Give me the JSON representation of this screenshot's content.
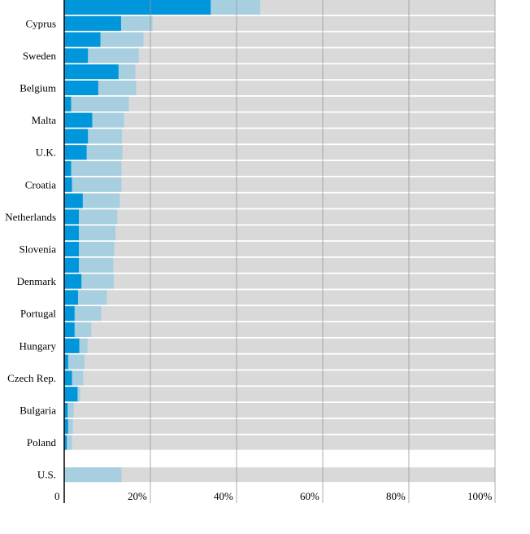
{
  "chart_data": {
    "type": "bar",
    "orientation": "horizontal",
    "stacked": true,
    "colors": {
      "dark": "#0096db",
      "light": "#a7cfe0",
      "remainder": "#d9d9d9",
      "gridline": "#999999",
      "axis": "#000000"
    },
    "xlim": [
      0,
      100
    ],
    "x_ticks": [
      {
        "value": 0,
        "label": "0"
      },
      {
        "value": 20,
        "label": "20%"
      },
      {
        "value": 40,
        "label": "40%"
      },
      {
        "value": 60,
        "label": "60%"
      },
      {
        "value": 80,
        "label": "80%"
      },
      {
        "value": 100,
        "label": "100%"
      }
    ],
    "rows": [
      {
        "label": "",
        "dark": 34,
        "light": 11.5
      },
      {
        "label": "Cyprus",
        "dark": 13.2,
        "light": 7.3
      },
      {
        "label": "",
        "dark": 8.4,
        "light": 10
      },
      {
        "label": "Sweden",
        "dark": 5.5,
        "light": 11.8
      },
      {
        "label": "",
        "dark": 12.6,
        "light": 3.9
      },
      {
        "label": "Belgium",
        "dark": 7.9,
        "light": 8.8
      },
      {
        "label": "",
        "dark": 1.6,
        "light": 13.4
      },
      {
        "label": "Malta",
        "dark": 6.5,
        "light": 7.4
      },
      {
        "label": "",
        "dark": 5.5,
        "light": 7.9
      },
      {
        "label": "U.K.",
        "dark": 5.2,
        "light": 8.3
      },
      {
        "label": "",
        "dark": 1.6,
        "light": 11.7
      },
      {
        "label": "Croatia",
        "dark": 1.8,
        "light": 11.5
      },
      {
        "label": "",
        "dark": 4.3,
        "light": 8.6
      },
      {
        "label": "Netherlands",
        "dark": 3.4,
        "light": 8.9
      },
      {
        "label": "",
        "dark": 3.4,
        "light": 8.5
      },
      {
        "label": "Slovenia",
        "dark": 3.4,
        "light": 8.2
      },
      {
        "label": "",
        "dark": 3.4,
        "light": 8
      },
      {
        "label": "Denmark",
        "dark": 4,
        "light": 7.5
      },
      {
        "label": "",
        "dark": 3.2,
        "light": 6.7
      },
      {
        "label": "Portugal",
        "dark": 2.4,
        "light": 6.2
      },
      {
        "label": "",
        "dark": 2.4,
        "light": 3.9
      },
      {
        "label": "Hungary",
        "dark": 3.5,
        "light": 1.9
      },
      {
        "label": "",
        "dark": 0.9,
        "light": 3.8
      },
      {
        "label": "Czech Rep.",
        "dark": 1.8,
        "light": 2.6
      },
      {
        "label": "",
        "dark": 3.1,
        "light": 0.6
      },
      {
        "label": "Bulgaria",
        "dark": 0.8,
        "light": 1.4
      },
      {
        "label": "",
        "dark": 0.9,
        "light": 1.1
      },
      {
        "label": "Poland",
        "dark": 0.6,
        "light": 1.2
      },
      {
        "gap": true
      },
      {
        "label": "U.S.",
        "dark": 0,
        "light": 13.3
      }
    ]
  }
}
